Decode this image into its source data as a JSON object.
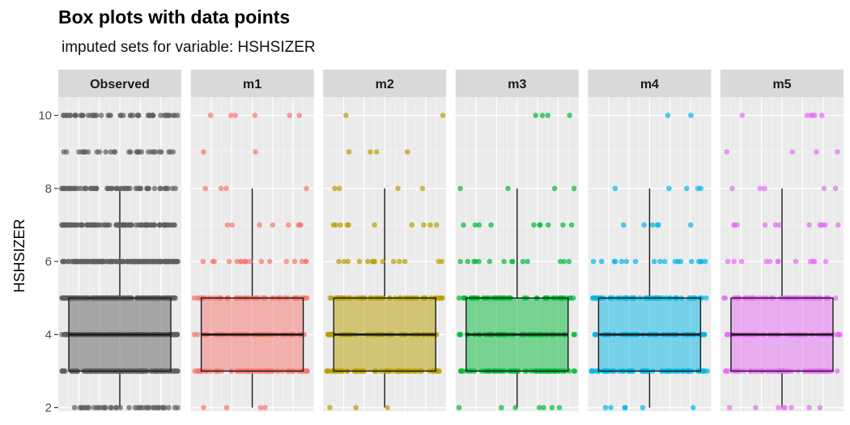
{
  "chart_data": {
    "type": "box",
    "title": "Box plots with data points",
    "subtitle": " imputed sets for variable:  HSHSIZER",
    "ylabel": "HSHSIZER",
    "xlabel": "",
    "ylim": [
      1.9,
      10.5
    ],
    "yticks": [
      2,
      4,
      6,
      8,
      10
    ],
    "grid": true,
    "panels": [
      {
        "name": "Observed",
        "color": "#5f5f5f",
        "box": {
          "min": 2,
          "q1": 3,
          "median": 4,
          "q3": 5,
          "max": 8
        },
        "points": [
          {
            "y": 2,
            "n": 40
          },
          {
            "y": 3,
            "n": 160
          },
          {
            "y": 4,
            "n": 160
          },
          {
            "y": 5,
            "n": 160
          },
          {
            "y": 6,
            "n": 140
          },
          {
            "y": 7,
            "n": 110
          },
          {
            "y": 8,
            "n": 60
          },
          {
            "y": 9,
            "n": 30
          },
          {
            "y": 10,
            "n": 50
          }
        ]
      },
      {
        "name": "m1",
        "color": "#f8766d",
        "box": {
          "min": 2,
          "q1": 3,
          "median": 4,
          "q3": 5,
          "max": 8
        },
        "points": [
          {
            "y": 2,
            "n": 4
          },
          {
            "y": 3,
            "n": 70
          },
          {
            "y": 4,
            "n": 60
          },
          {
            "y": 5,
            "n": 60
          },
          {
            "y": 6,
            "n": 18
          },
          {
            "y": 7,
            "n": 8
          },
          {
            "y": 8,
            "n": 4
          },
          {
            "y": 9,
            "n": 2
          },
          {
            "y": 10,
            "n": 6
          }
        ]
      },
      {
        "name": "m2",
        "color": "#b79f00",
        "box": {
          "min": 2,
          "q1": 3,
          "median": 4,
          "q3": 5,
          "max": 8
        },
        "points": [
          {
            "y": 2,
            "n": 3
          },
          {
            "y": 3,
            "n": 70
          },
          {
            "y": 4,
            "n": 60
          },
          {
            "y": 5,
            "n": 55
          },
          {
            "y": 6,
            "n": 14
          },
          {
            "y": 7,
            "n": 10
          },
          {
            "y": 8,
            "n": 4
          },
          {
            "y": 9,
            "n": 4
          },
          {
            "y": 10,
            "n": 2
          }
        ]
      },
      {
        "name": "m3",
        "color": "#00ba38",
        "box": {
          "min": 2,
          "q1": 3,
          "median": 4,
          "q3": 5,
          "max": 8
        },
        "points": [
          {
            "y": 2,
            "n": 7
          },
          {
            "y": 3,
            "n": 70
          },
          {
            "y": 4,
            "n": 60
          },
          {
            "y": 5,
            "n": 60
          },
          {
            "y": 6,
            "n": 14
          },
          {
            "y": 7,
            "n": 10
          },
          {
            "y": 8,
            "n": 4
          },
          {
            "y": 10,
            "n": 4
          }
        ]
      },
      {
        "name": "m4",
        "color": "#00b6e6",
        "box": {
          "min": 2,
          "q1": 3,
          "median": 4,
          "q3": 5,
          "max": 8
        },
        "points": [
          {
            "y": 2,
            "n": 6
          },
          {
            "y": 3,
            "n": 70
          },
          {
            "y": 4,
            "n": 60
          },
          {
            "y": 5,
            "n": 60
          },
          {
            "y": 6,
            "n": 18
          },
          {
            "y": 7,
            "n": 6
          },
          {
            "y": 8,
            "n": 5
          },
          {
            "y": 10,
            "n": 2
          }
        ]
      },
      {
        "name": "m5",
        "color": "#e76bf3",
        "box": {
          "min": 2,
          "q1": 3,
          "median": 4,
          "q3": 5,
          "max": 8
        },
        "points": [
          {
            "y": 2,
            "n": 8
          },
          {
            "y": 3,
            "n": 70
          },
          {
            "y": 4,
            "n": 60
          },
          {
            "y": 5,
            "n": 60
          },
          {
            "y": 6,
            "n": 12
          },
          {
            "y": 7,
            "n": 12
          },
          {
            "y": 8,
            "n": 5
          },
          {
            "y": 9,
            "n": 4
          },
          {
            "y": 10,
            "n": 6
          }
        ]
      }
    ]
  }
}
